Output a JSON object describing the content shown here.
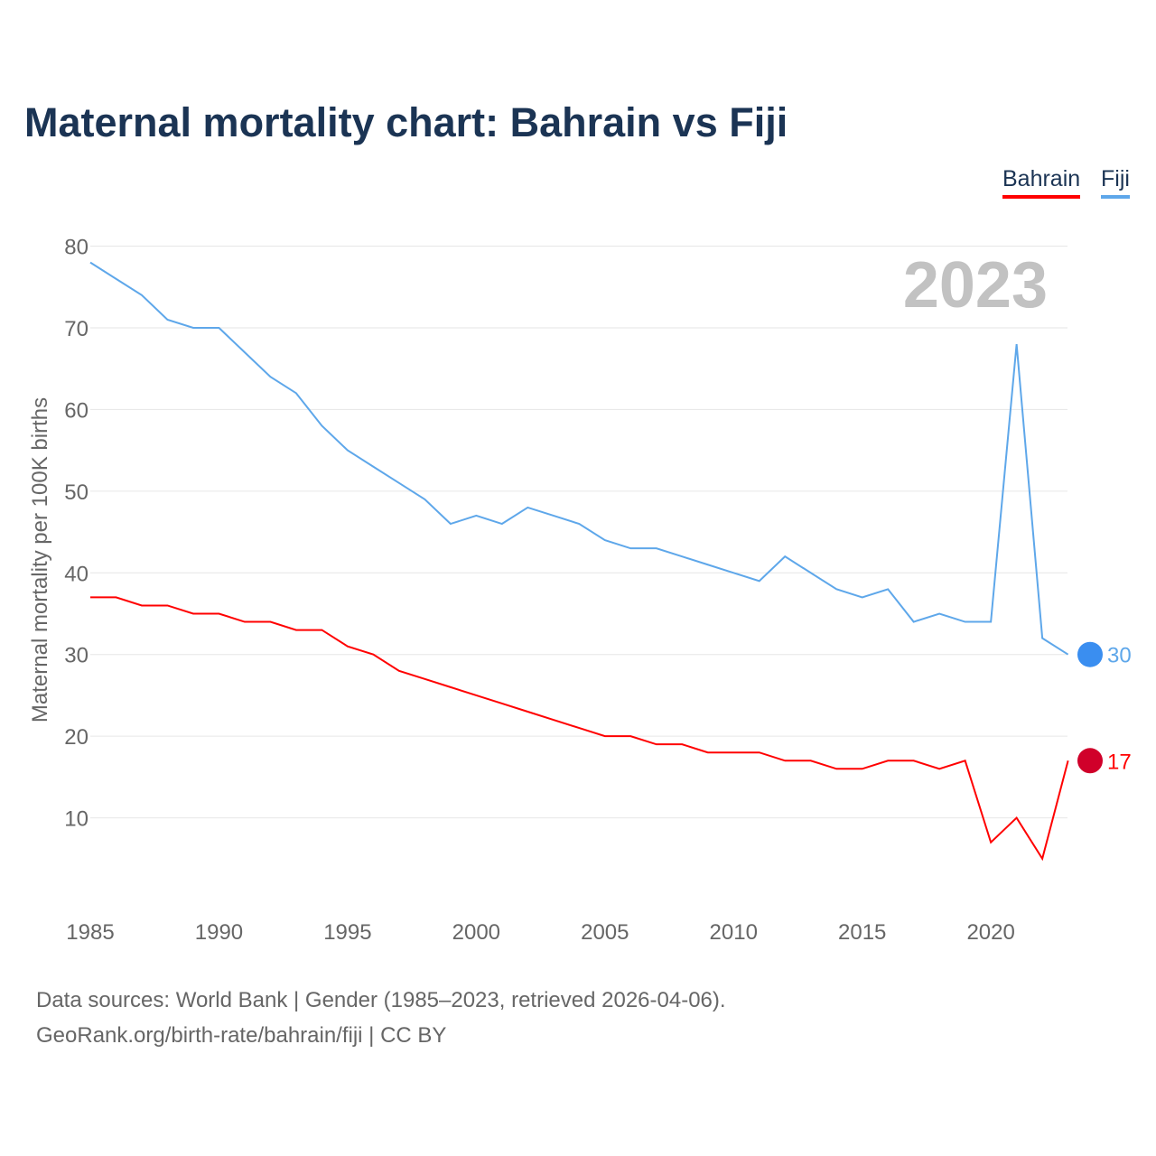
{
  "title": "Maternal mortality chart: Bahrain vs Fiji",
  "source_line1": "Data sources: World Bank | Gender (1985–2023, retrieved 2026-04-06).",
  "source_line2": "GeoRank.org/birth-rate/bahrain/fiji | CC BY",
  "chart_data": {
    "type": "line",
    "title": "Maternal mortality chart: Bahrain vs Fiji",
    "ylabel": "Maternal mortality per 100K births",
    "xlabel": "",
    "year_label": "2023",
    "xlim": [
      1985,
      2023
    ],
    "ylim": [
      0,
      80
    ],
    "xticks": [
      1985,
      1990,
      1995,
      2000,
      2005,
      2010,
      2015,
      2020
    ],
    "yticks": [
      10,
      20,
      30,
      40,
      50,
      60,
      70,
      80
    ],
    "legend_position": "top-right",
    "x": [
      1985,
      1986,
      1987,
      1988,
      1989,
      1990,
      1991,
      1992,
      1993,
      1994,
      1995,
      1996,
      1997,
      1998,
      1999,
      2000,
      2001,
      2002,
      2003,
      2004,
      2005,
      2006,
      2007,
      2008,
      2009,
      2010,
      2011,
      2012,
      2013,
      2014,
      2015,
      2016,
      2017,
      2018,
      2019,
      2020,
      2021,
      2022,
      2023
    ],
    "series": [
      {
        "name": "Bahrain",
        "color": "#ff0000",
        "end_label": "17",
        "values": [
          37,
          37,
          36,
          36,
          35,
          35,
          34,
          34,
          33,
          33,
          31,
          30,
          28,
          27,
          26,
          25,
          24,
          23,
          22,
          21,
          20,
          20,
          19,
          19,
          18,
          18,
          18,
          17,
          17,
          16,
          16,
          17,
          17,
          16,
          17,
          7,
          10,
          5,
          17
        ]
      },
      {
        "name": "Fiji",
        "color": "#5ea7ea",
        "end_label": "30",
        "values": [
          78,
          76,
          74,
          71,
          70,
          70,
          67,
          64,
          62,
          58,
          55,
          53,
          51,
          49,
          46,
          47,
          46,
          48,
          47,
          46,
          44,
          43,
          43,
          42,
          41,
          40,
          39,
          42,
          40,
          38,
          37,
          38,
          34,
          35,
          34,
          34,
          68,
          32,
          30
        ]
      }
    ]
  }
}
